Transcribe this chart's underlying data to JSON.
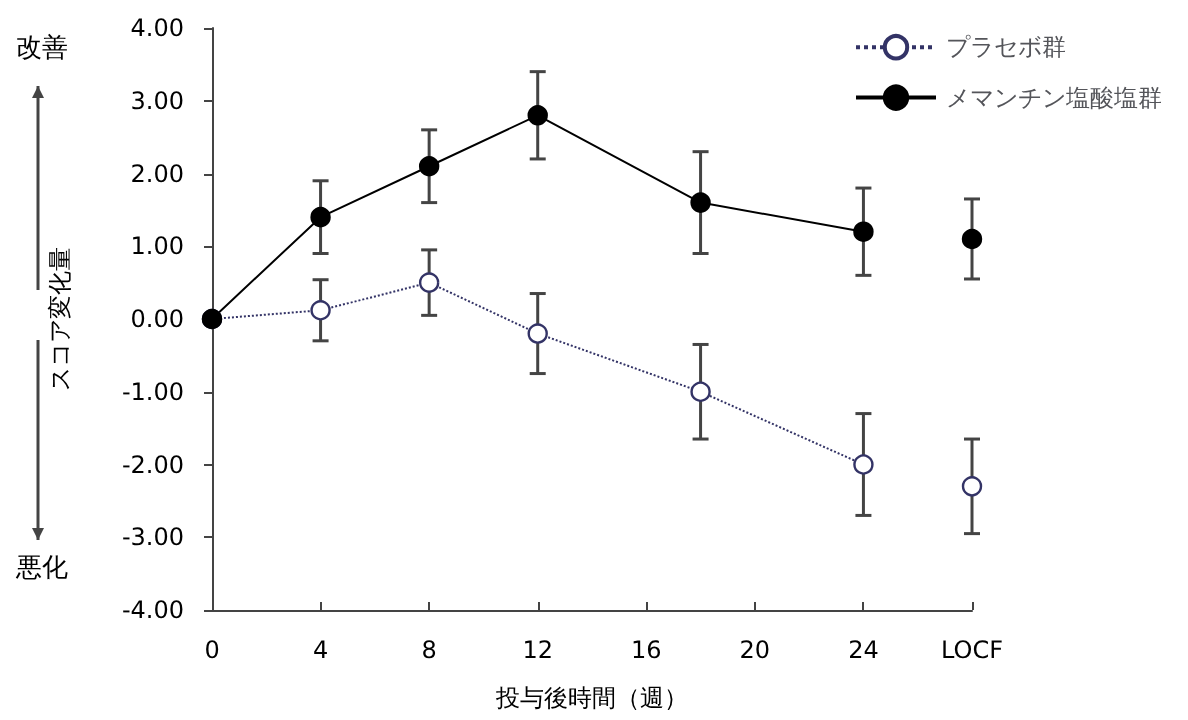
{
  "chart_data": {
    "type": "line",
    "xlabel": "投与後時間（週）",
    "ylabel": "スコア変化量",
    "annotations": [
      "改善",
      "悪化"
    ],
    "x": [
      0,
      4,
      8,
      12,
      18,
      24,
      26,
      28
    ],
    "series": [
      {
        "name": "プラセボ群",
        "color": "#333366",
        "line_style": "dotted",
        "values": [
          0,
          0.12,
          0.5,
          -0.2,
          -1.0,
          -2.0,
          null,
          -2.3
        ],
        "errors": [
          null,
          0.42,
          0.45,
          0.55,
          0.65,
          0.7,
          null,
          0.65
        ]
      },
      {
        "name": "メマンチン塩酸塩群",
        "color": "#000000",
        "line_style": "solid",
        "values": [
          0,
          1.4,
          2.1,
          2.8,
          1.6,
          1.2,
          null,
          1.1
        ],
        "errors": [
          null,
          0.5,
          0.5,
          0.6,
          0.7,
          0.6,
          null,
          0.55
        ]
      }
    ],
    "xlim": [
      0,
      28
    ],
    "xticks": [
      0,
      4,
      8,
      12,
      16,
      20,
      24,
      {
        "value": 28,
        "label": "LOCF"
      }
    ],
    "ylim": [
      -4,
      4
    ],
    "yticks": [
      {
        "value": -4,
        "label": "-4.00"
      },
      {
        "value": -3,
        "label": "-3.00"
      },
      {
        "value": -2,
        "label": "-2.00"
      },
      {
        "value": -1,
        "label": "-1.00"
      },
      {
        "value": 0,
        "label": "0.00"
      },
      {
        "value": 1,
        "label": "1.00"
      },
      {
        "value": 2,
        "label": "2.00"
      },
      {
        "value": 3,
        "label": "3.00"
      },
      {
        "value": 4,
        "label": "4.00"
      }
    ],
    "marker": "circle",
    "grid": false,
    "legend": "top right"
  }
}
